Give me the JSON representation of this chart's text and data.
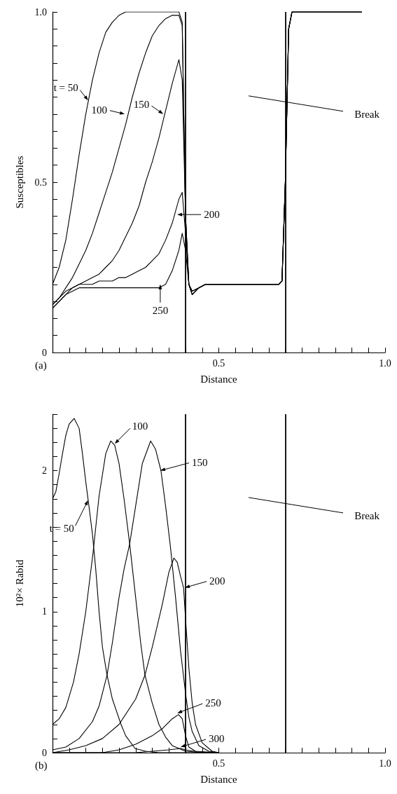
{
  "chart_data": [
    {
      "type": "line",
      "xlabel": "Distance",
      "ylabel": "Susceptibles",
      "xlim": [
        0,
        1
      ],
      "ylim": [
        0,
        1
      ],
      "xticks": [
        {
          "value": 0,
          "label": null
        },
        {
          "value": 0.05,
          "label": null
        },
        {
          "value": 0.1,
          "label": null
        },
        {
          "value": 0.15,
          "label": null
        },
        {
          "value": 0.2,
          "label": null
        },
        {
          "value": 0.25,
          "label": null
        },
        {
          "value": 0.3,
          "label": null
        },
        {
          "value": 0.35,
          "label": null
        },
        {
          "value": 0.4,
          "label": null
        },
        {
          "value": 0.45,
          "label": null
        },
        {
          "value": 0.5,
          "label": "0.5"
        },
        {
          "value": 0.55,
          "label": null
        },
        {
          "value": 0.6,
          "label": null
        },
        {
          "value": 0.65,
          "label": null
        },
        {
          "value": 0.7,
          "label": null
        },
        {
          "value": 0.75,
          "label": null
        },
        {
          "value": 0.8,
          "label": null
        },
        {
          "value": 0.85,
          "label": null
        },
        {
          "value": 0.9,
          "label": null
        },
        {
          "value": 0.95,
          "label": null
        },
        {
          "value": 1,
          "label": "1.0"
        }
      ],
      "yticks": [
        0,
        {
          "value": 0.05,
          "label": null
        },
        {
          "value": 0.1,
          "label": null
        },
        {
          "value": 0.15,
          "label": null
        },
        {
          "value": 0.2,
          "label": null
        },
        {
          "value": 0.25,
          "label": null
        },
        {
          "value": 0.3,
          "label": null
        },
        {
          "value": 0.35,
          "label": null
        },
        {
          "value": 0.4,
          "label": null
        },
        {
          "value": 0.45,
          "label": null
        },
        0.5,
        {
          "value": 0.55,
          "label": null
        },
        {
          "value": 0.6,
          "label": null
        },
        {
          "value": 0.65,
          "label": null
        },
        {
          "value": 0.7,
          "label": null
        },
        {
          "value": 0.75,
          "label": null
        },
        {
          "value": 0.8,
          "label": null
        },
        {
          "value": 0.85,
          "label": null
        },
        {
          "value": 0.9,
          "label": null
        },
        {
          "value": 0.95,
          "label": null
        },
        {
          "value": 1,
          "label": "1.0"
        }
      ],
      "grid": false,
      "x": [
        0,
        0.02,
        0.04,
        0.06,
        0.08,
        0.1,
        0.12,
        0.14,
        0.16,
        0.18,
        0.2,
        0.22,
        0.24,
        0.26,
        0.28,
        0.3,
        0.32,
        0.34,
        0.36,
        0.38,
        0.39,
        0.4,
        0.41,
        0.42,
        0.44,
        0.46,
        0.5,
        0.6,
        0.68,
        0.69,
        0.7,
        0.71,
        0.72,
        0.8,
        0.93
      ],
      "series": [
        {
          "color": "#000000",
          "values": [
            0.2,
            0.25,
            0.33,
            0.45,
            0.58,
            0.7,
            0.8,
            0.88,
            0.94,
            0.97,
            0.99,
            1,
            1,
            1,
            1,
            1,
            1,
            1,
            1,
            1,
            0.97,
            0.4,
            0.2,
            0.17,
            0.19,
            0.2,
            0.2,
            0.2,
            0.2,
            0.21,
            0.5,
            0.95,
            1,
            1,
            1
          ]
        },
        {
          "color": "#000000",
          "values": [
            0.14,
            0.16,
            0.19,
            0.22,
            0.26,
            0.3,
            0.35,
            0.41,
            0.47,
            0.53,
            0.6,
            0.67,
            0.75,
            0.82,
            0.88,
            0.93,
            0.96,
            0.98,
            0.99,
            0.99,
            0.96,
            0.4,
            0.2,
            0.17,
            0.19,
            0.2,
            0.2,
            0.2,
            0.2,
            0.21,
            0.5,
            0.95,
            1,
            1,
            1
          ]
        },
        {
          "color": "#000000",
          "values": [
            0.14,
            0.16,
            0.18,
            0.19,
            0.2,
            0.21,
            0.22,
            0.23,
            0.25,
            0.27,
            0.3,
            0.34,
            0.38,
            0.43,
            0.5,
            0.56,
            0.63,
            0.71,
            0.79,
            0.86,
            0.8,
            0.4,
            0.2,
            0.17,
            0.19,
            0.2,
            0.2,
            0.2,
            0.2,
            0.21,
            0.5,
            0.95,
            1,
            1,
            1
          ]
        },
        {
          "color": "#000000",
          "values": [
            0.13,
            0.15,
            0.17,
            0.19,
            0.2,
            0.2,
            0.2,
            0.21,
            0.21,
            0.21,
            0.22,
            0.22,
            0.23,
            0.24,
            0.25,
            0.27,
            0.29,
            0.33,
            0.38,
            0.45,
            0.47,
            0.35,
            0.2,
            0.18,
            0.19,
            0.2,
            0.2,
            0.2,
            0.2,
            0.21,
            0.5,
            0.95,
            1,
            1,
            1
          ]
        },
        {
          "color": "#000000",
          "values": [
            0.13,
            0.15,
            0.17,
            0.18,
            0.19,
            0.19,
            0.19,
            0.19,
            0.19,
            0.19,
            0.19,
            0.19,
            0.19,
            0.19,
            0.19,
            0.19,
            0.19,
            0.2,
            0.24,
            0.3,
            0.35,
            0.3,
            0.2,
            0.18,
            0.19,
            0.2,
            0.2,
            0.2,
            0.2,
            0.21,
            0.5,
            0.95,
            1,
            1,
            1
          ]
        }
      ],
      "ref_lines": [
        {
          "axis": "x",
          "value": 0.4,
          "color": "#000000"
        },
        {
          "axis": "x",
          "value": 0.7,
          "color": "#000000"
        }
      ],
      "annotations": [
        {
          "text": "t = 50",
          "x": 0.107,
          "y": 0.74
        },
        {
          "text": "100",
          "x": 0.217,
          "y": 0.7
        },
        {
          "text": "150",
          "x": 0.333,
          "y": 0.7
        },
        {
          "text": "200",
          "x": 0.375,
          "y": 0.405
        },
        {
          "text": "250",
          "x": 0.324,
          "y": 0.2
        },
        "Break",
        "(a)"
      ]
    },
    {
      "type": "line",
      "xlabel": "Distance",
      "ylabel": "10²× Rabid",
      "xlim": [
        0,
        1
      ],
      "ylim": [
        0,
        2.4
      ],
      "xticks": [
        {
          "value": 0,
          "label": null
        },
        {
          "value": 0.05,
          "label": null
        },
        {
          "value": 0.1,
          "label": null
        },
        {
          "value": 0.15,
          "label": null
        },
        {
          "value": 0.2,
          "label": null
        },
        {
          "value": 0.25,
          "label": null
        },
        {
          "value": 0.3,
          "label": null
        },
        {
          "value": 0.35,
          "label": null
        },
        {
          "value": 0.4,
          "label": null
        },
        {
          "value": 0.45,
          "label": null
        },
        {
          "value": 0.5,
          "label": "0.5"
        },
        {
          "value": 0.55,
          "label": null
        },
        {
          "value": 0.6,
          "label": null
        },
        {
          "value": 0.65,
          "label": null
        },
        {
          "value": 0.7,
          "label": null
        },
        {
          "value": 0.75,
          "label": null
        },
        {
          "value": 0.8,
          "label": null
        },
        {
          "value": 0.85,
          "label": null
        },
        {
          "value": 0.9,
          "label": null
        },
        {
          "value": 0.95,
          "label": null
        },
        {
          "value": 1,
          "label": "1.0"
        }
      ],
      "yticks": [
        0,
        {
          "value": 0.1,
          "label": null
        },
        {
          "value": 0.2,
          "label": null
        },
        {
          "value": 0.3,
          "label": null
        },
        {
          "value": 0.4,
          "label": null
        },
        {
          "value": 0.5,
          "label": null
        },
        {
          "value": 0.6,
          "label": null
        },
        {
          "value": 0.7,
          "label": null
        },
        {
          "value": 0.8,
          "label": null
        },
        {
          "value": 0.9,
          "label": null
        },
        1,
        {
          "value": 1.1,
          "label": null
        },
        {
          "value": 1.2,
          "label": null
        },
        {
          "value": 1.3,
          "label": null
        },
        {
          "value": 1.4,
          "label": null
        },
        {
          "value": 1.5,
          "label": null
        },
        {
          "value": 1.6,
          "label": null
        },
        {
          "value": 1.7,
          "label": null
        },
        {
          "value": 1.8,
          "label": null
        },
        {
          "value": 1.9,
          "label": null
        },
        2,
        {
          "value": 2.1,
          "label": null
        },
        {
          "value": 2.2,
          "label": null
        },
        {
          "value": 2.3,
          "label": null
        },
        {
          "value": 2.4,
          "label": null
        }
      ],
      "grid": false,
      "series": [
        {
          "color": "#000000",
          "x": [
            0,
            0.01,
            0.02,
            0.03,
            0.04,
            0.05,
            0.065,
            0.08,
            0.09,
            0.1,
            0.11,
            0.12,
            0.13,
            0.14,
            0.15,
            0.164,
            0.18,
            0.206,
            0.22,
            0.248,
            0.28,
            0.32,
            0.4,
            0.5
          ],
          "values": [
            1.8,
            1.85,
            1.98,
            2.12,
            2.25,
            2.33,
            2.37,
            2.3,
            2.12,
            1.92,
            1.74,
            1.55,
            1.3,
            1.0,
            0.75,
            0.55,
            0.38,
            0.2,
            0.12,
            0.03,
            0.01,
            0,
            0,
            0
          ]
        },
        {
          "color": "#000000",
          "x": [
            0,
            0.02,
            0.04,
            0.063,
            0.08,
            0.1,
            0.122,
            0.14,
            0.16,
            0.175,
            0.187,
            0.2,
            0.215,
            0.232,
            0.25,
            0.265,
            0.278,
            0.3,
            0.32,
            0.34,
            0.36,
            0.4,
            0.45,
            0.5
          ],
          "values": [
            0.2,
            0.24,
            0.32,
            0.5,
            0.7,
            1.0,
            1.42,
            1.82,
            2.12,
            2.21,
            2.18,
            2.05,
            1.8,
            1.48,
            1.1,
            0.78,
            0.55,
            0.35,
            0.2,
            0.11,
            0.05,
            0.01,
            0,
            0
          ]
        },
        {
          "color": "#000000",
          "x": [
            0,
            0.04,
            0.08,
            0.12,
            0.14,
            0.164,
            0.18,
            0.2,
            0.215,
            0.232,
            0.25,
            0.27,
            0.295,
            0.31,
            0.326,
            0.34,
            0.355,
            0.37,
            0.385,
            0.4,
            0.41,
            0.42,
            0.44,
            0.47,
            0.5
          ],
          "values": [
            0.02,
            0.04,
            0.1,
            0.22,
            0.33,
            0.55,
            0.78,
            1.1,
            1.3,
            1.48,
            1.75,
            2.05,
            2.21,
            2.15,
            2.0,
            1.75,
            1.45,
            1.1,
            0.72,
            0.42,
            0.25,
            0.15,
            0.05,
            0.01,
            0
          ]
        },
        {
          "color": "#000000",
          "x": [
            0,
            0.05,
            0.1,
            0.15,
            0.2,
            0.25,
            0.278,
            0.3,
            0.33,
            0.35,
            0.365,
            0.375,
            0.385,
            0.394,
            0.4,
            0.41,
            0.42,
            0.43,
            0.45,
            0.48,
            0.5
          ],
          "values": [
            0,
            0.02,
            0.05,
            0.1,
            0.2,
            0.38,
            0.55,
            0.75,
            1.05,
            1.28,
            1.38,
            1.35,
            1.25,
            1.17,
            0.95,
            0.6,
            0.35,
            0.2,
            0.07,
            0.01,
            0
          ]
        },
        {
          "color": "#000000",
          "x": [
            0,
            0.15,
            0.2,
            0.25,
            0.3,
            0.33,
            0.36,
            0.379,
            0.39,
            0.4,
            0.41,
            0.43,
            0.5
          ],
          "values": [
            0,
            0,
            0.02,
            0.06,
            0.12,
            0.17,
            0.24,
            0.27,
            0.24,
            0.12,
            0.04,
            0.01,
            0
          ]
        },
        {
          "color": "#000000",
          "x": [
            0,
            0.25,
            0.3,
            0.35,
            0.385,
            0.4,
            0.45,
            0.5
          ],
          "values": [
            0,
            0,
            0.01,
            0.02,
            0.03,
            0.02,
            0,
            0
          ]
        }
      ],
      "ref_lines": [
        {
          "axis": "x",
          "value": 0.4,
          "color": "#000000"
        },
        {
          "axis": "x",
          "value": 0.7,
          "color": "#000000"
        }
      ],
      "annotations": [
        {
          "text": "t = 50",
          "x": 0.107,
          "y": 1.79
        },
        {
          "text": "100",
          "x": 0.187,
          "y": 2.19
        },
        {
          "text": "150",
          "x": 0.324,
          "y": 2.0
        },
        {
          "text": "200",
          "x": 0.398,
          "y": 1.17
        },
        {
          "text": "250",
          "x": 0.375,
          "y": 0.28
        },
        {
          "text": "300",
          "x": 0.385,
          "y": 0.04
        },
        "Break",
        "(b)"
      ]
    }
  ]
}
